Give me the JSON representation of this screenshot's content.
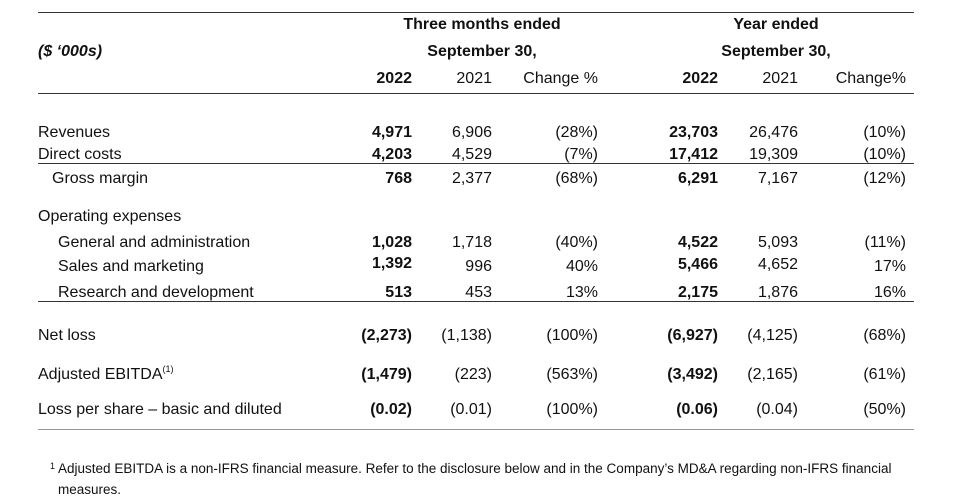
{
  "header": {
    "units": "($ ‘000s)",
    "three_months_line1": "Three months ended",
    "three_months_line2": "September 30,",
    "year_line1": "Year ended",
    "year_line2": "September 30,",
    "col_2022_q": "2022",
    "col_2021_q": "2021",
    "col_change_q": "Change %",
    "col_2022_y": "2022",
    "col_2021_y": "2021",
    "col_change_y": "Change%"
  },
  "rows": [
    {
      "label": "Revenues",
      "q22": "4,971",
      "q21": "6,906",
      "qch": "(28%)",
      "y22": "23,703",
      "y21": "26,476",
      "ych": "(10%)"
    },
    {
      "label": "Direct costs",
      "q22": "4,203",
      "q21": "4,529",
      "qch": "(7%)",
      "y22": "17,412",
      "y21": "19,309",
      "ych": "(10%)"
    },
    {
      "label": "Gross margin",
      "q22": "768",
      "q21": "2,377",
      "qch": "(68%)",
      "y22": "6,291",
      "y21": "7,167",
      "ych": "(12%)"
    },
    {
      "label": "Operating expenses"
    },
    {
      "label": "General and administration",
      "q22": "1,028",
      "q21": "1,718",
      "qch": "(40%)",
      "y22": "4,522",
      "y21": "5,093",
      "ych": "(11%)"
    },
    {
      "label": "Sales and marketing",
      "q22": "1,392",
      "q21": "996",
      "qch": "40%",
      "y22": "5,466",
      "y21": "4,652",
      "ych": "17%"
    },
    {
      "label": "Research and development",
      "q22": "513",
      "q21": "453",
      "qch": "13%",
      "y22": "2,175",
      "y21": "1,876",
      "ych": "16%"
    },
    {
      "label": "Net loss",
      "q22": "(2,273)",
      "q21": "(1,138)",
      "qch": "(100%)",
      "y22": "(6,927)",
      "y21": "(4,125)",
      "ych": "(68%)"
    },
    {
      "label": "Adjusted EBITDA",
      "label_sup": "(1)",
      "q22": "(1,479)",
      "q21": "(223)",
      "qch": "(563%)",
      "y22": "(3,492)",
      "y21": "(2,165)",
      "ych": "(61%)"
    },
    {
      "label": "Loss per share – basic and diluted",
      "q22": "(0.02)",
      "q21": "(0.01)",
      "qch": "(100%)",
      "y22": "(0.06)",
      "y21": "(0.04)",
      "ych": "(50%)"
    }
  ],
  "footnote": {
    "marker": "1",
    "line1": "Adjusted EBITDA is a non-IFRS financial measure. Refer to the disclosure below and in the Company’s MD&A regarding non-IFRS financial",
    "line2": "measures."
  }
}
